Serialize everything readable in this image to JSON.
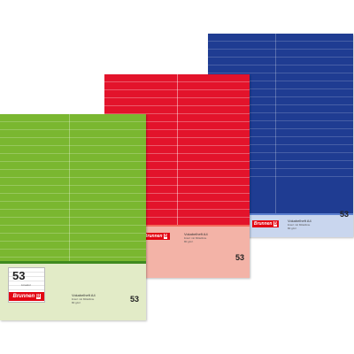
{
  "brand": {
    "name": "Brunnen",
    "mark": "B",
    "color": "#e30613"
  },
  "notebooks": [
    {
      "color_name": "blue",
      "cover_color": "#1f3c92",
      "label_color": "#c9d6ee",
      "title": "Vokabelheft A4",
      "subtitle": "liniert mit Mittellinie",
      "weight": "80 g/m²",
      "lineature": "53"
    },
    {
      "color_name": "red",
      "cover_color": "#e3132b",
      "label_color": "#f3b3a7",
      "title": "Vokabelheft A4",
      "subtitle": "liniert mit Mittellinie",
      "weight": "80 g/m²",
      "lineature": "53"
    },
    {
      "color_name": "green",
      "cover_color": "#7ab730",
      "label_color": "#e2ebc7",
      "title": "Vokabelheft A4",
      "subtitle": "liniert mit Mittellinie",
      "weight": "80 g/m²",
      "lineature": "53",
      "box_number": "53",
      "box_caption": "Lineatur"
    }
  ]
}
